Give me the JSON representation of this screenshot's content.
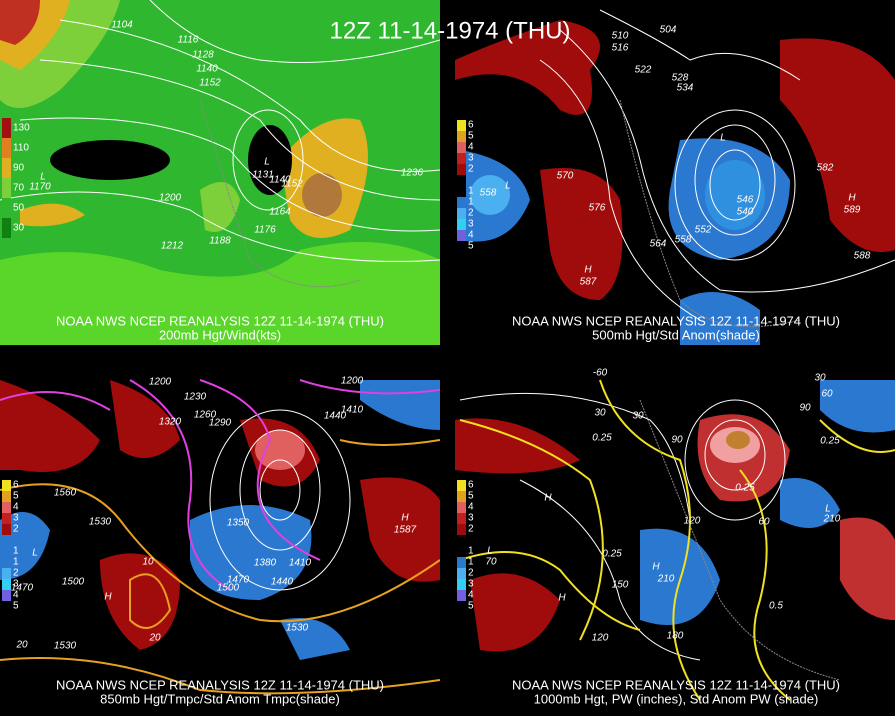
{
  "header": {
    "title": "12Z 11-14-1974 (THU)"
  },
  "panels": [
    {
      "caption": "NOAA NWS NCEP REANALYSIS 12Z 11-14-1974 (THU)",
      "subcaption": "200mb Hgt/Wind(kts)",
      "legend": [
        "130",
        "110",
        "90",
        "70",
        "50",
        "30"
      ],
      "labels": [
        "1104",
        "1116",
        "1128",
        "1140",
        "1152",
        "1236",
        "1200",
        "1212",
        "1188",
        "1176",
        "1164",
        "1152",
        "1140",
        "L",
        "1131",
        "L",
        "1170"
      ]
    },
    {
      "caption": "NOAA NWS NCEP REANALYSIS 12Z 11-14-1974 (THU)",
      "subcaption": "500mb Hgt/Std Anom(shade)",
      "legend": [
        "6",
        "5",
        "4",
        "3",
        "2",
        "1",
        "1",
        "2",
        "3",
        "4",
        "5"
      ],
      "labels": [
        "510",
        "516",
        "522",
        "528",
        "534",
        "504",
        "570",
        "576",
        "582",
        "588",
        "564",
        "558",
        "552",
        "546",
        "540",
        "L",
        "H",
        "587",
        "H",
        "589",
        "L",
        "558"
      ]
    },
    {
      "caption": "NOAA NWS NCEP REANALYSIS 12Z 11-14-1974 (THU)",
      "subcaption": "850mb Hgt/Tmpc/Std Anom Tmpc(shade)",
      "legend": [
        "6",
        "5",
        "4",
        "3",
        "2",
        "1",
        "1",
        "2",
        "3",
        "4",
        "5"
      ],
      "labels": [
        "1200",
        "1230",
        "1260",
        "1290",
        "1320",
        "1350",
        "1380",
        "1410",
        "1440",
        "1470",
        "1500",
        "1530",
        "1560",
        "1500",
        "1470",
        "1530",
        "H",
        "1587",
        "L",
        "H",
        "20",
        "1530",
        "10",
        "20",
        "1200",
        "1410",
        "1440"
      ]
    },
    {
      "caption": "NOAA NWS NCEP REANALYSIS 12Z 11-14-1974 (THU)",
      "subcaption": "1000mb Hgt, PW (inches), Std Anom PW (shade)",
      "legend": [
        "6",
        "5",
        "4",
        "3",
        "2",
        "1",
        "1",
        "2",
        "3",
        "4",
        "5"
      ],
      "labels": [
        "-60",
        "30",
        "90",
        "60",
        "30",
        "30",
        "0.25",
        "0.25",
        "0.25",
        "0.25",
        "0.5",
        "120",
        "150",
        "180",
        "210",
        "60",
        "H",
        "L",
        "70",
        "H",
        "L",
        "210",
        "H",
        "90",
        "120"
      ]
    }
  ]
}
